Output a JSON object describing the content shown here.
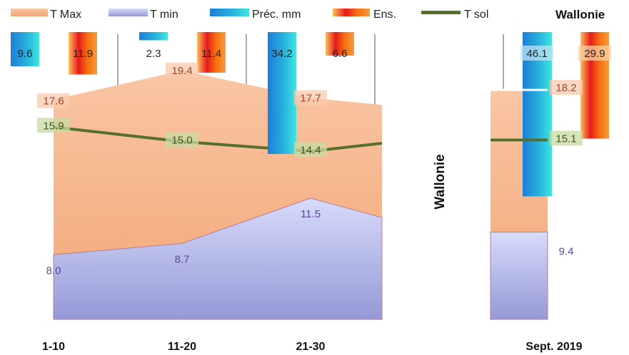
{
  "chart_data": {
    "type": "area",
    "region_label": "Wallonie",
    "side_label": "Wallonie",
    "legend": {
      "placement": "top",
      "items": [
        {
          "key": "tmax",
          "label": "T Max"
        },
        {
          "key": "tmin",
          "label": "T min"
        },
        {
          "key": "prec",
          "label": "Préc. mm"
        },
        {
          "key": "ens",
          "label": "Ens."
        },
        {
          "key": "tsol",
          "label": "T sol"
        }
      ]
    },
    "categories": [
      "1-10",
      "11-20",
      "21-30"
    ],
    "series": [
      {
        "key": "tmax",
        "name": "T Max",
        "values": [
          17.6,
          19.4,
          17.7
        ],
        "labels": [
          "17.6",
          "19.4",
          "17.7"
        ],
        "color": "#f7a77a"
      },
      {
        "key": "tmin",
        "name": "T min",
        "values": [
          8.0,
          8.7,
          11.5
        ],
        "labels": [
          "8.0",
          "8.7",
          "11.5"
        ],
        "color": "#9a9fd8"
      },
      {
        "key": "tsol",
        "name": "T sol",
        "values": [
          15.9,
          15.0,
          14.4
        ],
        "labels": [
          "15.9",
          "15.0",
          "14.4"
        ],
        "color": "#55702a"
      },
      {
        "key": "prec",
        "name": "Préc. mm",
        "values": [
          9.6,
          2.3,
          34.2
        ],
        "labels": [
          "9.6",
          "2.3",
          "34.2"
        ],
        "color": "#1e90d8"
      },
      {
        "key": "ens",
        "name": "Ens.",
        "values": [
          11.9,
          11.4,
          6.6
        ],
        "labels": [
          "11.9",
          "11.4",
          "6.6"
        ],
        "color": "#f07010"
      }
    ],
    "monthly": {
      "category": "Sept. 2019",
      "tmax": 18.2,
      "tmax_label": "18.2",
      "tmin": 9.4,
      "tmin_label": "9.4",
      "tsol": 15.1,
      "tsol_label": "15.1",
      "prec": 46.1,
      "prec_label": "46.1",
      "ens": 29.9,
      "ens_label": "29.9"
    },
    "temperature_axis": {
      "min": 4,
      "max": 22
    },
    "bar_axis": {
      "min": 0,
      "max": 60
    },
    "grid": false
  }
}
